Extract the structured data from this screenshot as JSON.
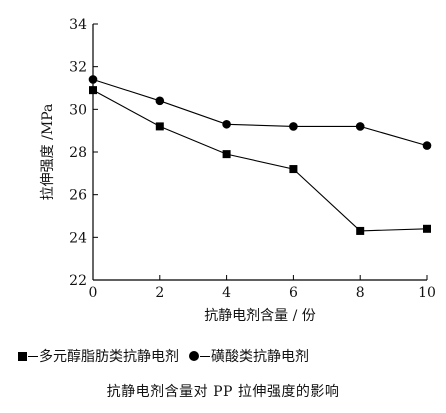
{
  "chart_data": {
    "type": "line",
    "xlabel": "抗静电剂含量 / 份",
    "ylabel": "拉伸强度 /MPa",
    "xlim": [
      0,
      10
    ],
    "ylim": [
      22,
      34
    ],
    "x_ticks": [
      0,
      2,
      4,
      6,
      8,
      10
    ],
    "y_ticks": [
      22,
      24,
      26,
      28,
      30,
      32,
      34
    ],
    "grid": false,
    "legend_position": "bottom",
    "x": [
      0,
      2,
      4,
      6,
      8,
      10
    ],
    "series": [
      {
        "name": "多元醇脂肪类抗静电剂",
        "marker": "square",
        "values": [
          30.9,
          29.2,
          27.9,
          27.2,
          24.3,
          24.4
        ]
      },
      {
        "name": "磺酸类抗静电剂",
        "marker": "circle",
        "values": [
          31.4,
          30.4,
          29.3,
          29.2,
          29.2,
          28.3
        ]
      }
    ]
  },
  "caption": "抗静电剂含量对 PP 拉伸强度的影响"
}
